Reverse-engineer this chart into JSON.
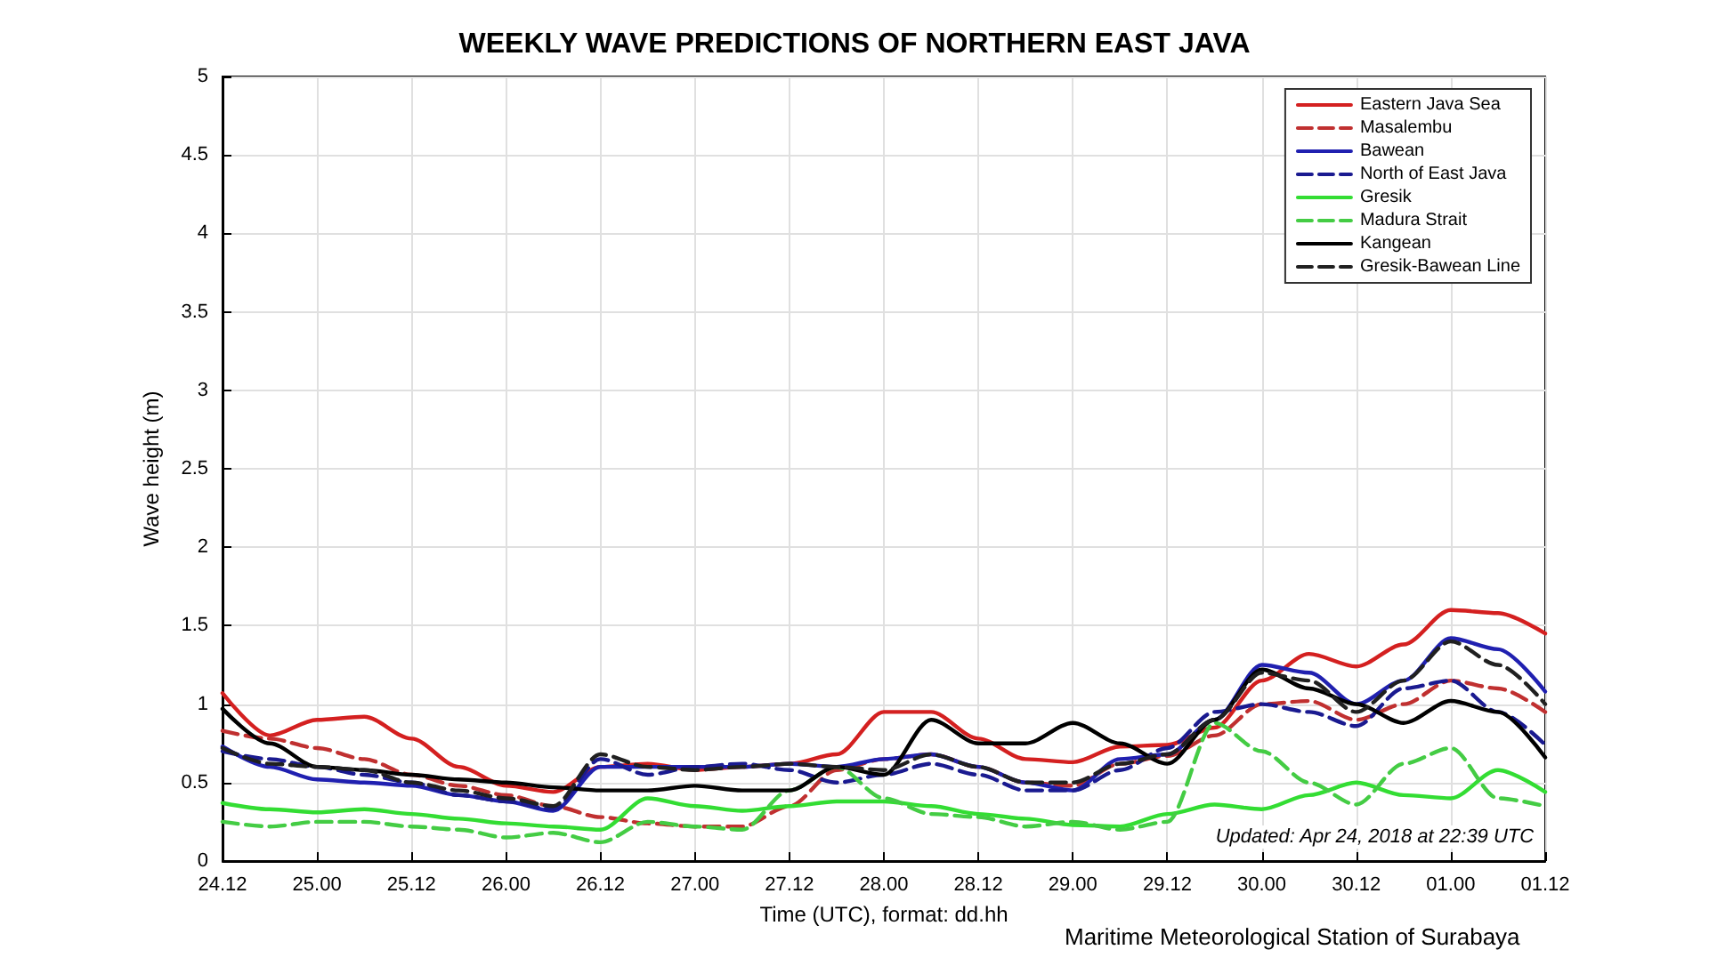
{
  "chart_data": {
    "type": "line",
    "title": "WEEKLY WAVE PREDICTIONS OF NORTHERN EAST JAVA",
    "xlabel": "Time (UTC), format: dd.hh",
    "ylabel": "Wave height (m)",
    "categories": [
      "24.12",
      null,
      "25.00",
      null,
      "25.12",
      null,
      "26.00",
      null,
      "26.12",
      null,
      "27.00",
      null,
      "27.12",
      null,
      "28.00",
      null,
      "28.12",
      null,
      "29.00",
      null,
      "29.12",
      null,
      "30.00",
      null,
      "30.12",
      null,
      "01.00",
      null,
      "01.12"
    ],
    "series": [
      {
        "name": "Eastern Java Sea",
        "color": "#d42020",
        "line_style": "solid",
        "values": [
          1.07,
          0.8,
          0.9,
          0.92,
          0.78,
          0.6,
          0.48,
          0.44,
          0.6,
          0.62,
          0.58,
          0.6,
          0.62,
          0.68,
          0.95,
          0.95,
          0.78,
          0.65,
          0.63,
          0.73,
          0.74,
          0.85,
          1.15,
          1.32,
          1.24,
          1.38,
          1.6,
          1.58,
          1.45
        ]
      },
      {
        "name": "Masalembu",
        "color": "#c03030",
        "line_style": "dashed",
        "values": [
          0.83,
          0.78,
          0.72,
          0.65,
          0.55,
          0.48,
          0.42,
          0.35,
          0.28,
          0.24,
          0.22,
          0.22,
          0.35,
          0.58,
          0.65,
          0.68,
          0.6,
          0.5,
          0.48,
          0.62,
          0.67,
          0.8,
          1.0,
          1.02,
          0.9,
          1.0,
          1.15,
          1.1,
          0.95
        ]
      },
      {
        "name": "Bawean",
        "color": "#2020b0",
        "line_style": "solid",
        "values": [
          0.73,
          0.6,
          0.52,
          0.5,
          0.48,
          0.42,
          0.38,
          0.32,
          0.6,
          0.6,
          0.6,
          0.6,
          0.62,
          0.6,
          0.65,
          0.68,
          0.6,
          0.5,
          0.45,
          0.65,
          0.68,
          0.9,
          1.25,
          1.2,
          1.0,
          1.15,
          1.42,
          1.35,
          1.08
        ]
      },
      {
        "name": "North of East Java",
        "color": "#1a1a90",
        "line_style": "dashed",
        "values": [
          0.7,
          0.65,
          0.6,
          0.55,
          0.5,
          0.42,
          0.38,
          0.33,
          0.65,
          0.55,
          0.6,
          0.62,
          0.58,
          0.5,
          0.55,
          0.62,
          0.55,
          0.45,
          0.45,
          0.58,
          0.72,
          0.95,
          1.0,
          0.95,
          0.86,
          1.1,
          1.15,
          0.95,
          0.74
        ]
      },
      {
        "name": "Gresik",
        "color": "#33dd33",
        "line_style": "solid",
        "values": [
          0.37,
          0.33,
          0.31,
          0.33,
          0.3,
          0.27,
          0.24,
          0.22,
          0.2,
          0.4,
          0.35,
          0.32,
          0.35,
          0.38,
          0.38,
          0.35,
          0.3,
          0.27,
          0.23,
          0.22,
          0.3,
          0.36,
          0.33,
          0.42,
          0.5,
          0.42,
          0.4,
          0.58,
          0.44
        ]
      },
      {
        "name": "Madura Strait",
        "color": "#44cc44",
        "line_style": "dashed",
        "values": [
          0.25,
          0.22,
          0.25,
          0.25,
          0.22,
          0.2,
          0.15,
          0.18,
          0.12,
          0.25,
          0.22,
          0.2,
          0.45,
          0.6,
          0.4,
          0.3,
          0.28,
          0.22,
          0.25,
          0.2,
          0.25,
          0.88,
          0.7,
          0.5,
          0.36,
          0.62,
          0.72,
          0.4,
          0.35
        ]
      },
      {
        "name": "Kangean",
        "color": "#000000",
        "line_style": "solid",
        "values": [
          0.97,
          0.75,
          0.6,
          0.58,
          0.55,
          0.52,
          0.5,
          0.47,
          0.45,
          0.45,
          0.48,
          0.45,
          0.45,
          0.6,
          0.55,
          0.9,
          0.75,
          0.75,
          0.88,
          0.75,
          0.62,
          0.9,
          1.22,
          1.1,
          1.0,
          0.88,
          1.02,
          0.95,
          0.66
        ]
      },
      {
        "name": "Gresik-Bawean Line",
        "color": "#202020",
        "line_style": "dashed",
        "values": [
          0.72,
          0.62,
          0.6,
          0.58,
          0.5,
          0.45,
          0.4,
          0.35,
          0.68,
          0.6,
          0.58,
          0.6,
          0.62,
          0.6,
          0.58,
          0.68,
          0.6,
          0.5,
          0.5,
          0.62,
          0.68,
          0.9,
          1.2,
          1.15,
          0.95,
          1.15,
          1.4,
          1.25,
          1.0
        ]
      }
    ],
    "ylim": [
      0,
      5
    ],
    "yticks": [
      0,
      0.5,
      1,
      1.5,
      2,
      2.5,
      3,
      3.5,
      4,
      4.5,
      5
    ],
    "grid": true,
    "legend": "top right",
    "marker": "none",
    "annotations": [
      "Updated: Apr 24, 2018 at 22:39 UTC",
      "Maritime Meteorological Station of Surabaya"
    ]
  }
}
